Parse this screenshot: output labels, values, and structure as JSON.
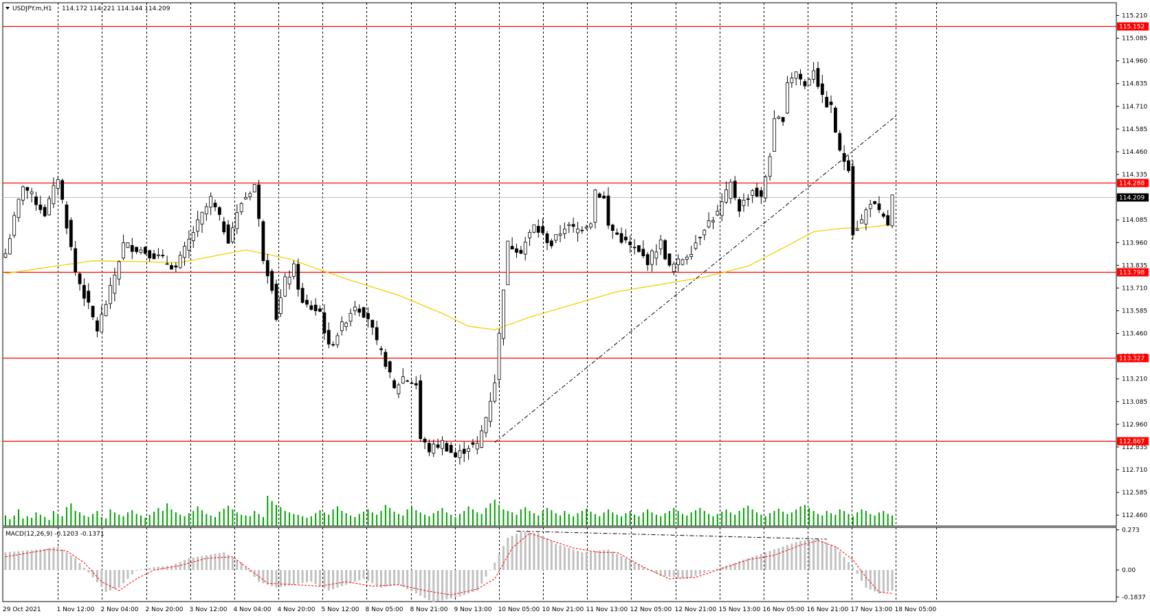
{
  "header": {
    "symbol": "USDJPY.m,H1",
    "ohlc": "114.172 114.221 114.144 114.209"
  },
  "macd_header": "MACD(12,26,9) -0.1203 -0.1371",
  "colors": {
    "background": "#ffffff",
    "bull_candle": "#ffffff",
    "bear_candle": "#000000",
    "levels": "#ff0000",
    "ma": "#f0d000",
    "volume": "#00a000",
    "macd_hist": "#c0c0c0",
    "macd_signal": "#ff0000",
    "current_price_bg": "#000000"
  },
  "chart_data": [
    {
      "type": "candlestick",
      "title": "",
      "price_axis": {
        "range": [
          112.4,
          115.28
        ],
        "ticks": [
          115.21,
          115.085,
          114.96,
          114.835,
          114.71,
          114.585,
          114.46,
          114.335,
          114.21,
          114.085,
          113.96,
          113.835,
          113.71,
          113.585,
          113.46,
          113.335,
          113.21,
          113.085,
          112.96,
          112.835,
          112.71,
          112.585,
          112.46
        ]
      },
      "time_labels": [
        "29 Oct 2021",
        "1 Nov 12:00",
        "2 Nov 04:00",
        "2 Nov 20:00",
        "3 Nov 12:00",
        "4 Nov 04:00",
        "4 Nov 20:00",
        "5 Nov 12:00",
        "8 Nov 05:00",
        "8 Nov 21:00",
        "9 Nov 13:00",
        "10 Nov 05:00",
        "10 Nov 21:00",
        "11 Nov 13:00",
        "12 Nov 05:00",
        "12 Nov 21:00",
        "15 Nov 13:00",
        "16 Nov 05:00",
        "16 Nov 21:00",
        "17 Nov 13:00",
        "18 Nov 05:00"
      ],
      "horizontal_levels": [
        115.152,
        114.288,
        113.798,
        113.327,
        112.867
      ],
      "level_labels": [
        "115.152",
        "114.288",
        "113.798",
        "113.327",
        "112.867"
      ],
      "current_price": 114.209,
      "current_price_label": "114.209",
      "price_path": [
        [
          0,
          113.9
        ],
        [
          4,
          114.28
        ],
        [
          9,
          114.12
        ],
        [
          12,
          114.32
        ],
        [
          16,
          113.8
        ],
        [
          21,
          113.48
        ],
        [
          24,
          113.7
        ],
        [
          27,
          113.95
        ],
        [
          31,
          113.92
        ],
        [
          35,
          113.88
        ],
        [
          39,
          113.82
        ],
        [
          43,
          114.02
        ],
        [
          47,
          114.2
        ],
        [
          51,
          113.98
        ],
        [
          54,
          114.18
        ],
        [
          57,
          114.28
        ],
        [
          59,
          113.88
        ],
        [
          61,
          113.72
        ],
        [
          62,
          113.55
        ],
        [
          64,
          113.75
        ],
        [
          66,
          113.82
        ],
        [
          68,
          113.62
        ],
        [
          72,
          113.58
        ],
        [
          74,
          113.38
        ],
        [
          77,
          113.5
        ],
        [
          80,
          113.62
        ],
        [
          83,
          113.55
        ],
        [
          85,
          113.4
        ],
        [
          87,
          113.3
        ],
        [
          89,
          113.15
        ],
        [
          91,
          113.22
        ],
        [
          94,
          113.18
        ],
        [
          95,
          112.88
        ],
        [
          97,
          112.82
        ],
        [
          100,
          112.86
        ],
        [
          103,
          112.78
        ],
        [
          106,
          112.84
        ],
        [
          108,
          112.84
        ],
        [
          110,
          113.0
        ],
        [
          112,
          113.2
        ],
        [
          113,
          113.45
        ],
        [
          114,
          113.72
        ],
        [
          115,
          113.95
        ],
        [
          118,
          113.92
        ],
        [
          121,
          114.05
        ],
        [
          125,
          113.95
        ],
        [
          128,
          114.05
        ],
        [
          131,
          114.03
        ],
        [
          134,
          114.08
        ],
        [
          135,
          114.25
        ],
        [
          137,
          114.2
        ],
        [
          138,
          114.05
        ],
        [
          141,
          113.98
        ],
        [
          144,
          113.92
        ],
        [
          147,
          113.86
        ],
        [
          150,
          113.96
        ],
        [
          152,
          113.82
        ],
        [
          154,
          113.85
        ],
        [
          157,
          113.92
        ],
        [
          160,
          114.05
        ],
        [
          163,
          114.12
        ],
        [
          166,
          114.28
        ],
        [
          168,
          114.15
        ],
        [
          171,
          114.25
        ],
        [
          173,
          114.2
        ],
        [
          175,
          114.45
        ],
        [
          176,
          114.62
        ],
        [
          178,
          114.65
        ],
        [
          179,
          114.85
        ],
        [
          181,
          114.9
        ],
        [
          183,
          114.82
        ],
        [
          185,
          114.92
        ],
        [
          187,
          114.75
        ],
        [
          189,
          114.7
        ],
        [
          191,
          114.45
        ],
        [
          193,
          114.38
        ],
        [
          194,
          114.02
        ],
        [
          196,
          114.08
        ],
        [
          198,
          114.19
        ],
        [
          200,
          114.12
        ],
        [
          202,
          114.06
        ],
        [
          203,
          114.21
        ]
      ],
      "ma_path": [
        [
          0,
          113.79
        ],
        [
          20,
          113.86
        ],
        [
          40,
          113.85
        ],
        [
          55,
          113.92
        ],
        [
          65,
          113.87
        ],
        [
          78,
          113.76
        ],
        [
          90,
          113.67
        ],
        [
          100,
          113.57
        ],
        [
          106,
          113.5
        ],
        [
          112,
          113.48
        ],
        [
          120,
          113.55
        ],
        [
          130,
          113.62
        ],
        [
          140,
          113.69
        ],
        [
          150,
          113.73
        ],
        [
          160,
          113.77
        ],
        [
          170,
          113.83
        ],
        [
          178,
          113.93
        ],
        [
          185,
          114.02
        ],
        [
          192,
          114.04
        ],
        [
          196,
          114.04
        ],
        [
          203,
          114.06
        ]
      ],
      "trendline": {
        "from": [
          112,
          112.86
        ],
        "to": [
          204,
          114.66
        ]
      },
      "volume": [
        14,
        9,
        14,
        22,
        10,
        13,
        11,
        18,
        15,
        12,
        8,
        20,
        16,
        13,
        25,
        30,
        20,
        18,
        14,
        12,
        16,
        20,
        12,
        10,
        22,
        18,
        15,
        13,
        18,
        21,
        16,
        14,
        11,
        15,
        19,
        24,
        20,
        30,
        22,
        18,
        15,
        13,
        17,
        20,
        26,
        21,
        16,
        14,
        12,
        19,
        23,
        27,
        22,
        18,
        15,
        14,
        13,
        20,
        16,
        12,
        40,
        33,
        28,
        25,
        20,
        18,
        16,
        15,
        13,
        11,
        13,
        17,
        21,
        18,
        15,
        22,
        26,
        20,
        17,
        14,
        12,
        16,
        19,
        22,
        18,
        15,
        20,
        28,
        24,
        19,
        16,
        14,
        22,
        26,
        21,
        18,
        15,
        13,
        17,
        20,
        24,
        18,
        15,
        12,
        16,
        20,
        26,
        22,
        18,
        16,
        24,
        30,
        35,
        28,
        22,
        20,
        18,
        15,
        22,
        25,
        20,
        17,
        14,
        20,
        24,
        21,
        17,
        14,
        20,
        16,
        13,
        17,
        20,
        23,
        19,
        16,
        13,
        18,
        22,
        18,
        15,
        13,
        17,
        20,
        15,
        13,
        18,
        22,
        18,
        15,
        13,
        17,
        20,
        24,
        20,
        16,
        14,
        18,
        21,
        24,
        20,
        16,
        13,
        16,
        19,
        22,
        18,
        15,
        20,
        24,
        27,
        22,
        18,
        15,
        13,
        17,
        20,
        23,
        19,
        16,
        18,
        22,
        26,
        28,
        24,
        20,
        16,
        14,
        20,
        17,
        15,
        22,
        20,
        16,
        13,
        18,
        22,
        20,
        16,
        14,
        18,
        20,
        16,
        14
      ],
      "macd": {
        "range": [
          -0.215,
          0.29
        ],
        "ticks": [
          0.273,
          0.0,
          -0.1837
        ],
        "tick_labels": [
          "0.273",
          "0.00",
          "-0.1837"
        ],
        "hist_path": [
          [
            0,
            0.12
          ],
          [
            8,
            0.14
          ],
          [
            12,
            0.16
          ],
          [
            16,
            0.08
          ],
          [
            20,
            -0.05
          ],
          [
            23,
            -0.15
          ],
          [
            26,
            -0.12
          ],
          [
            30,
            0.0
          ],
          [
            34,
            0.02
          ],
          [
            38,
            0.03
          ],
          [
            42,
            0.08
          ],
          [
            46,
            0.1
          ],
          [
            50,
            0.12
          ],
          [
            54,
            0.05
          ],
          [
            58,
            -0.08
          ],
          [
            62,
            -0.12
          ],
          [
            66,
            -0.1
          ],
          [
            70,
            -0.08
          ],
          [
            74,
            -0.14
          ],
          [
            78,
            -0.1
          ],
          [
            82,
            -0.06
          ],
          [
            86,
            -0.12
          ],
          [
            90,
            -0.1
          ],
          [
            94,
            -0.16
          ],
          [
            98,
            -0.22
          ],
          [
            104,
            -0.18
          ],
          [
            108,
            -0.14
          ],
          [
            112,
            0.05
          ],
          [
            115,
            0.22
          ],
          [
            118,
            0.26
          ],
          [
            122,
            0.25
          ],
          [
            126,
            0.18
          ],
          [
            132,
            0.12
          ],
          [
            138,
            0.14
          ],
          [
            144,
            0.05
          ],
          [
            150,
            -0.04
          ],
          [
            156,
            -0.06
          ],
          [
            160,
            -0.02
          ],
          [
            166,
            0.04
          ],
          [
            172,
            0.1
          ],
          [
            178,
            0.16
          ],
          [
            182,
            0.2
          ],
          [
            186,
            0.21
          ],
          [
            190,
            0.16
          ],
          [
            194,
            0.02
          ],
          [
            197,
            -0.12
          ],
          [
            200,
            -0.16
          ],
          [
            203,
            -0.14
          ]
        ],
        "signal_path": [
          [
            0,
            0.09
          ],
          [
            10,
            0.14
          ],
          [
            14,
            0.13
          ],
          [
            18,
            0.05
          ],
          [
            22,
            -0.08
          ],
          [
            26,
            -0.14
          ],
          [
            30,
            -0.06
          ],
          [
            34,
            0.0
          ],
          [
            40,
            0.03
          ],
          [
            46,
            0.08
          ],
          [
            52,
            0.09
          ],
          [
            56,
            0.0
          ],
          [
            60,
            -0.09
          ],
          [
            66,
            -0.1
          ],
          [
            72,
            -0.11
          ],
          [
            78,
            -0.08
          ],
          [
            84,
            -0.11
          ],
          [
            90,
            -0.1
          ],
          [
            96,
            -0.14
          ],
          [
            102,
            -0.17
          ],
          [
            108,
            -0.13
          ],
          [
            112,
            -0.06
          ],
          [
            116,
            0.15
          ],
          [
            120,
            0.25
          ],
          [
            124,
            0.21
          ],
          [
            130,
            0.15
          ],
          [
            136,
            0.12
          ],
          [
            140,
            0.12
          ],
          [
            146,
            0.02
          ],
          [
            152,
            -0.06
          ],
          [
            158,
            -0.05
          ],
          [
            164,
            0.01
          ],
          [
            170,
            0.07
          ],
          [
            176,
            0.1
          ],
          [
            182,
            0.17
          ],
          [
            186,
            0.2
          ],
          [
            190,
            0.16
          ],
          [
            194,
            0.07
          ],
          [
            197,
            -0.05
          ],
          [
            200,
            -0.15
          ],
          [
            203,
            -0.16
          ]
        ]
      }
    }
  ]
}
